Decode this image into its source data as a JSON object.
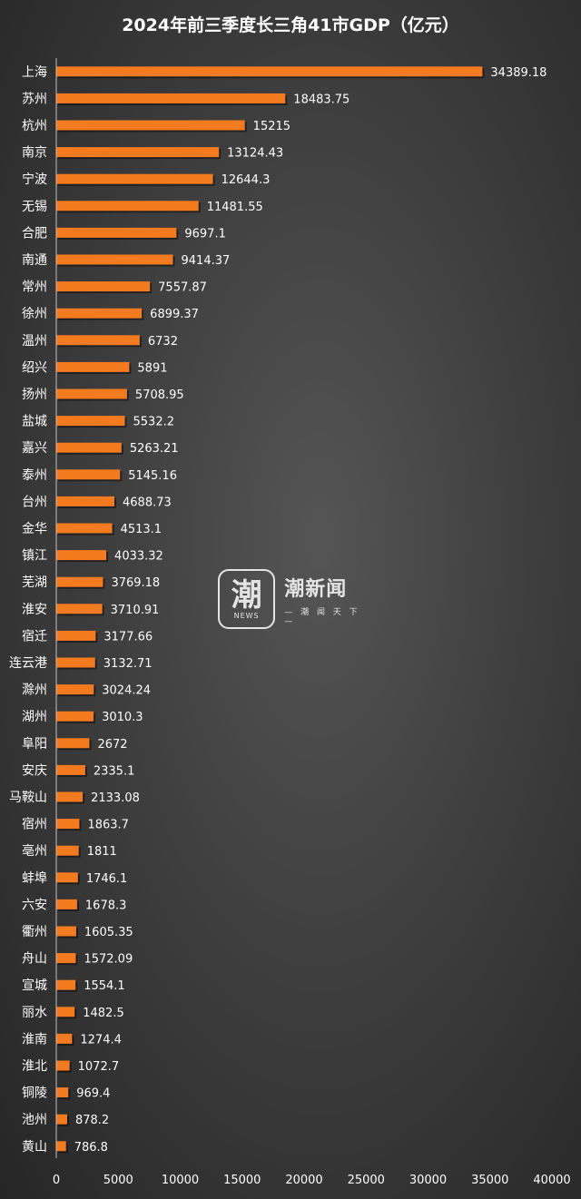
{
  "chart_data": {
    "type": "bar",
    "orientation": "horizontal",
    "title": "2024年前三季度长三角41市GDP（亿元）",
    "categories": [
      "上海",
      "苏州",
      "杭州",
      "南京",
      "宁波",
      "无锡",
      "合肥",
      "南通",
      "常州",
      "徐州",
      "温州",
      "绍兴",
      "扬州",
      "盐城",
      "嘉兴",
      "泰州",
      "台州",
      "金华",
      "镇江",
      "芜湖",
      "淮安",
      "宿迁",
      "连云港",
      "滁州",
      "湖州",
      "阜阳",
      "安庆",
      "马鞍山",
      "宿州",
      "亳州",
      "蚌埠",
      "六安",
      "衢州",
      "舟山",
      "宣城",
      "丽水",
      "淮南",
      "淮北",
      "铜陵",
      "池州",
      "黄山"
    ],
    "values": [
      34389.18,
      18483.75,
      15215,
      13124.43,
      12644.3,
      11481.55,
      9697.1,
      9414.37,
      7557.87,
      6899.37,
      6732,
      5891,
      5708.95,
      5532.2,
      5263.21,
      5145.16,
      4688.73,
      4513.1,
      4033.32,
      3769.18,
      3710.91,
      3177.66,
      3132.71,
      3024.24,
      3010.3,
      2672,
      2335.1,
      2133.08,
      1863.7,
      1811,
      1746.1,
      1678.3,
      1605.35,
      1572.09,
      1554.1,
      1482.5,
      1274.4,
      1072.7,
      969.4,
      878.2,
      786.8
    ],
    "value_labels": [
      "34389.18",
      "18483.75",
      "15215",
      "13124.43",
      "12644.3",
      "11481.55",
      "9697.1",
      "9414.37",
      "7557.87",
      "6899.37",
      "6732",
      "5891",
      "5708.95",
      "5532.2",
      "5263.21",
      "5145.16",
      "4688.73",
      "4513.1",
      "4033.32",
      "3769.18",
      "3710.91",
      "3177.66",
      "3132.71",
      "3024.24",
      "3010.3",
      "2672",
      "2335.1",
      "2133.08",
      "1863.7",
      "1811",
      "1746.1",
      "1678.3",
      "1605.35",
      "1572.09",
      "1554.1",
      "1482.5",
      "1274.4",
      "1072.7",
      "969.4",
      "878.2",
      "786.8"
    ],
    "xlim": [
      0,
      40000
    ],
    "xticks": [
      0,
      5000,
      10000,
      15000,
      20000,
      25000,
      30000,
      35000,
      40000
    ],
    "grid": false,
    "colors": {
      "bar": "#f47a20",
      "text": "#ffffff",
      "background": "#404040"
    }
  },
  "watermark": {
    "logo_char": "潮",
    "logo_sub": "NEWS",
    "brand": "潮新闻",
    "slogan": "— 潮 闻 天 下 —"
  }
}
